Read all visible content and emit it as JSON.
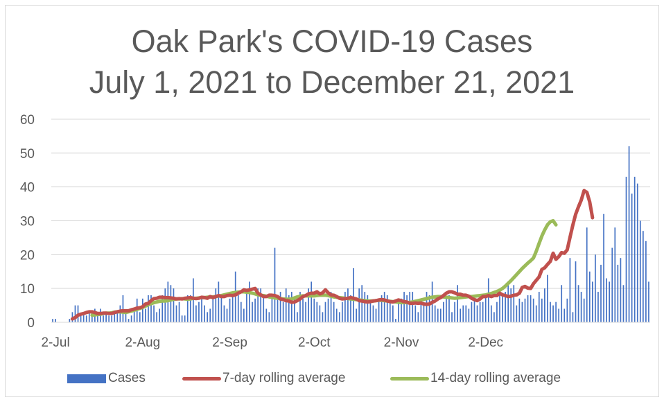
{
  "colors": {
    "cases": "#4472c4",
    "avg7": "#c0504d",
    "avg14": "#9bbb59",
    "grid": "#d9d9d9",
    "text": "#595959"
  },
  "chart_data": {
    "type": "bar",
    "title": "Oak Park's COVID-19 Cases",
    "subtitle": "July 1, 2021 to December 21, 2021",
    "xlabel": "",
    "ylabel": "",
    "ylim": [
      0,
      60
    ],
    "y_ticks": [
      "0",
      "10",
      "20",
      "30",
      "40",
      "50",
      "60"
    ],
    "x_tick_labels": [
      "2-Jul",
      "2-Aug",
      "2-Sep",
      "2-Oct",
      "2-Nov",
      "2-Dec"
    ],
    "x_tick_days": [
      1,
      32,
      63,
      93,
      124,
      154
    ],
    "grid": true,
    "legend_position": "bottom",
    "x_start": "2021-07-01",
    "series": [
      {
        "name": "Cases",
        "type": "bar",
        "values": [
          1,
          1,
          0,
          0,
          0,
          0,
          1,
          3,
          5,
          5,
          2,
          3,
          2,
          3,
          3,
          4,
          3,
          4,
          2,
          3,
          2,
          2,
          3,
          3,
          5,
          8,
          3,
          1,
          2,
          4,
          7,
          3,
          7,
          4,
          8,
          8,
          5,
          3,
          4,
          8,
          10,
          12,
          11,
          10,
          5,
          6,
          2,
          2,
          8,
          8,
          13,
          5,
          6,
          7,
          5,
          3,
          4,
          7,
          10,
          12,
          8,
          5,
          4,
          7,
          9,
          15,
          8,
          6,
          4,
          9,
          12,
          6,
          7,
          10,
          10,
          8,
          4,
          3,
          7,
          22,
          8,
          9,
          6,
          10,
          8,
          9,
          7,
          3,
          9,
          7,
          6,
          10,
          12,
          7,
          6,
          5,
          3,
          6,
          7,
          9,
          6,
          4,
          3,
          6,
          9,
          10,
          8,
          16,
          4,
          10,
          11,
          9,
          8,
          6,
          5,
          4,
          7,
          8,
          9,
          8,
          6,
          5,
          1,
          6,
          7,
          9,
          8,
          9,
          9,
          5,
          3,
          6,
          6,
          9,
          8,
          12,
          5,
          4,
          4,
          6,
          7,
          8,
          3,
          6,
          11,
          4,
          5,
          5,
          4,
          6,
          7,
          5,
          6,
          6,
          8,
          13,
          5,
          3,
          6,
          9,
          8,
          9,
          11,
          10,
          11,
          5,
          7,
          6,
          7,
          8,
          8,
          7,
          5,
          9,
          7,
          10,
          14,
          6,
          5,
          6,
          4,
          11,
          4,
          7,
          19,
          3,
          18,
          11,
          9,
          7,
          28,
          15,
          12,
          20,
          9,
          17,
          32,
          13,
          12,
          22,
          28,
          17,
          19,
          11,
          43,
          52,
          38,
          43,
          41,
          30,
          27,
          24,
          12
        ]
      },
      {
        "name": "7-day rolling average",
        "type": "line",
        "start_day": 7,
        "values": [
          1.0,
          1.4,
          2.1,
          2.4,
          2.6,
          2.9,
          3.1,
          3.1,
          2.9,
          2.6,
          2.6,
          2.7,
          2.7,
          2.6,
          2.6,
          2.9,
          3.1,
          3.3,
          3.4,
          3.4,
          3.4,
          3.7,
          3.9,
          4.2,
          4.3,
          4.6,
          5.4,
          5.6,
          6.4,
          7.0,
          7.1,
          7.4,
          7.4,
          7.3,
          7.3,
          7.2,
          7.1,
          6.9,
          7.0,
          6.9,
          7.1,
          7.2,
          7.3,
          7.1,
          7.0,
          7.1,
          7.4,
          7.3,
          7.1,
          7.6,
          7.3,
          7.6,
          7.9,
          7.6,
          7.6,
          7.9,
          8.0,
          7.9,
          8.1,
          8.6,
          9.0,
          9.6,
          9.4,
          9.6,
          9.8,
          10.0,
          8.6,
          8.1,
          7.6,
          7.6,
          8.0,
          8.0,
          7.9,
          7.6,
          6.9,
          6.7,
          6.4,
          6.3,
          5.9,
          6.0,
          6.4,
          6.9,
          7.6,
          7.9,
          8.4,
          8.6,
          8.6,
          9.0,
          8.4,
          8.7,
          9.6,
          8.7,
          8.1,
          8.0,
          7.6,
          7.1,
          6.9,
          7.0,
          7.1,
          7.3,
          7.1,
          6.9,
          6.4,
          6.3,
          6.1,
          6.0,
          6.1,
          6.3,
          6.4,
          6.6,
          6.7,
          6.6,
          6.3,
          6.1,
          6.0,
          6.3,
          6.6,
          6.4,
          6.1,
          6.0,
          5.6,
          5.6,
          5.7,
          5.6,
          5.7,
          5.4,
          5.3,
          5.4,
          5.9,
          6.3,
          6.9,
          7.3,
          7.9,
          8.6,
          9.0,
          9.0,
          8.7,
          8.3,
          8.3,
          8.0,
          8.0,
          7.7,
          7.1,
          6.7,
          6.4,
          6.9,
          7.6,
          7.6,
          7.9,
          7.6,
          7.9,
          7.9,
          8.6,
          8.1,
          7.9,
          7.6,
          7.7,
          8.0,
          8.1,
          8.6,
          10.3,
          10.6,
          10.1,
          10.0,
          11.4,
          12.4,
          13.4,
          15.6,
          16.1,
          17.1,
          18.0,
          20.4,
          18.6,
          19.4,
          20.6,
          20.4,
          21.4,
          25.1,
          28.7,
          31.9,
          34.1,
          36.1,
          38.9,
          38.4,
          35.6,
          30.9
        ]
      },
      {
        "name": "14-day rolling average",
        "type": "line",
        "start_day": 14,
        "values": [
          2.1,
          2.2,
          2.3,
          2.4,
          2.6,
          2.7,
          2.7,
          2.8,
          3.0,
          3.1,
          3.1,
          3.0,
          2.9,
          3.1,
          3.3,
          3.6,
          3.8,
          4.1,
          4.4,
          4.8,
          5.2,
          5.5,
          5.8,
          6.0,
          6.2,
          6.3,
          6.3,
          6.4,
          6.6,
          6.8,
          6.9,
          6.9,
          7.0,
          6.9,
          6.8,
          6.9,
          7.1,
          7.1,
          7.2,
          7.3,
          7.3,
          7.4,
          7.5,
          7.5,
          7.6,
          7.8,
          7.9,
          8.1,
          8.3,
          8.5,
          8.7,
          8.8,
          8.9,
          9.0,
          9.0,
          8.9,
          8.8,
          8.6,
          8.4,
          8.1,
          8.0,
          7.9,
          7.7,
          7.5,
          7.4,
          7.2,
          7.1,
          7.0,
          6.9,
          6.8,
          6.8,
          6.9,
          7.2,
          7.5,
          7.7,
          7.8,
          7.8,
          7.8,
          7.8,
          7.8,
          7.9,
          8.0,
          8.0,
          8.0,
          7.9,
          7.7,
          7.5,
          7.4,
          7.3,
          7.2,
          7.1,
          7.0,
          6.9,
          6.8,
          6.7,
          6.6,
          6.5,
          6.4,
          6.3,
          6.3,
          6.3,
          6.4,
          6.5,
          6.5,
          6.4,
          6.3,
          6.2,
          6.1,
          6.0,
          5.9,
          5.8,
          5.8,
          5.8,
          5.9,
          6.0,
          6.2,
          6.4,
          6.6,
          6.8,
          7.0,
          7.2,
          7.4,
          7.5,
          7.6,
          7.6,
          7.5,
          7.4,
          7.3,
          7.2,
          7.1,
          7.2,
          7.3,
          7.4,
          7.5,
          7.6,
          7.6,
          7.7,
          7.8,
          7.9,
          8.0,
          8.1,
          8.3,
          8.5,
          8.8,
          9.1,
          9.5,
          10.0,
          10.7,
          11.5,
          12.3,
          13.2,
          14.1,
          15.0,
          15.9,
          16.7,
          17.5,
          18.2,
          19.0,
          21.0,
          23.3,
          25.5,
          27.3,
          28.8,
          29.7,
          30.0,
          28.8
        ]
      }
    ]
  }
}
